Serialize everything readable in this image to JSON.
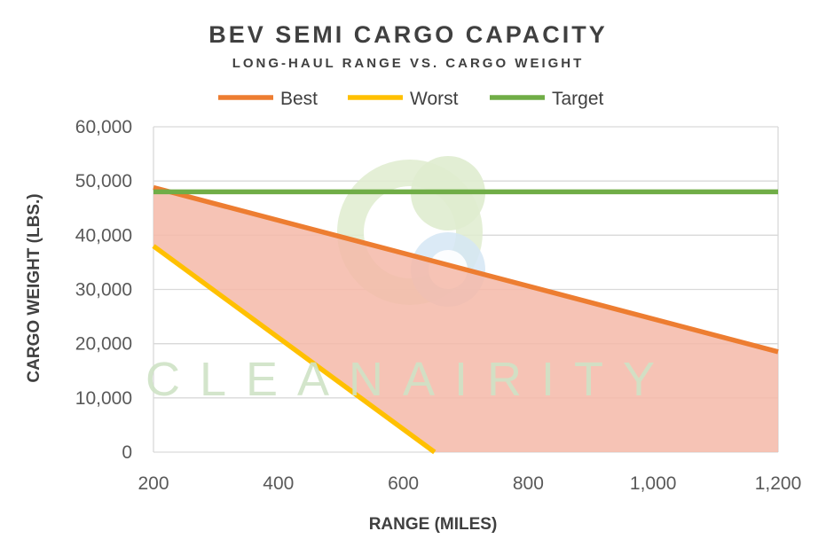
{
  "chart_data": {
    "type": "line",
    "title": "BEV SEMI CARGO CAPACITY",
    "subtitle": "LONG-HAUL RANGE VS. CARGO WEIGHT",
    "xlabel": "RANGE (MILES)",
    "ylabel": "CARGO WEIGHT (LBS.)",
    "xlim": [
      200,
      1200
    ],
    "ylim": [
      0,
      60000
    ],
    "x_ticks": [
      200,
      400,
      600,
      800,
      1000,
      1200
    ],
    "x_tick_labels": [
      "200",
      "400",
      "600",
      "800",
      "1,000",
      "1,200"
    ],
    "y_ticks": [
      0,
      10000,
      20000,
      30000,
      40000,
      50000,
      60000
    ],
    "y_tick_labels": [
      "0",
      "10,000",
      "20,000",
      "30,000",
      "40,000",
      "50,000",
      "60,000"
    ],
    "grid": true,
    "legend_position": "top",
    "series": [
      {
        "name": "Best",
        "color": "#ed7d31",
        "x": [
          200,
          1200
        ],
        "y": [
          48800,
          18500
        ]
      },
      {
        "name": "Worst",
        "color": "#ffc000",
        "x": [
          200,
          650
        ],
        "y": [
          38000,
          0
        ]
      },
      {
        "name": "Target",
        "color": "#70ad47",
        "x": [
          200,
          1200
        ],
        "y": [
          48000,
          48000
        ]
      }
    ],
    "shaded_region": {
      "color": "#f4b9a8",
      "between": [
        "Best",
        "Worst"
      ]
    }
  },
  "watermark": {
    "text": "CLEANAIRITY",
    "logo": "swirl-logo"
  }
}
